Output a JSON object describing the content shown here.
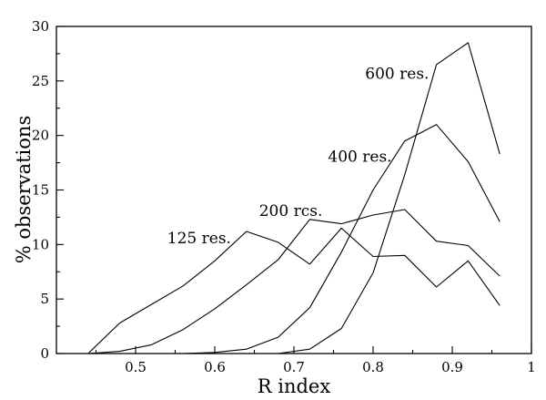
{
  "chart_data": {
    "type": "line",
    "title": "",
    "xlabel": "R index",
    "ylabel": "% observations",
    "xlim": [
      0.4,
      1.0
    ],
    "ylim": [
      0,
      30
    ],
    "x_ticks": [
      0.5,
      0.6,
      0.7,
      0.8,
      0.9,
      1.0
    ],
    "x_tick_labels": [
      "0.5",
      "0.6",
      "0.7",
      "0.8",
      "0.9",
      "1"
    ],
    "y_ticks": [
      0,
      5,
      10,
      15,
      20,
      25,
      30
    ],
    "y_tick_labels": [
      "0",
      "5",
      "10",
      "15",
      "20",
      "25",
      "30"
    ],
    "grid": false,
    "legend": "none",
    "series": [
      {
        "name": "125 res.",
        "x": [
          0.44,
          0.48,
          0.52,
          0.56,
          0.6,
          0.64,
          0.68,
          0.72,
          0.76,
          0.8,
          0.84,
          0.88,
          0.92,
          0.96
        ],
        "y": [
          0.0,
          2.8,
          4.5,
          6.2,
          8.5,
          11.2,
          10.2,
          8.2,
          11.5,
          8.9,
          9.0,
          6.1,
          8.5,
          4.4
        ]
      },
      {
        "name": "200 res.",
        "x": [
          0.44,
          0.48,
          0.52,
          0.56,
          0.6,
          0.64,
          0.68,
          0.72,
          0.76,
          0.8,
          0.84,
          0.88,
          0.92,
          0.96
        ],
        "y": [
          0.0,
          0.2,
          0.8,
          2.2,
          4.1,
          6.3,
          8.6,
          12.3,
          11.9,
          12.7,
          13.2,
          10.3,
          9.9,
          7.1
        ]
      },
      {
        "name": "400 res.",
        "x": [
          0.44,
          0.48,
          0.52,
          0.56,
          0.6,
          0.64,
          0.68,
          0.72,
          0.76,
          0.8,
          0.84,
          0.88,
          0.92,
          0.96
        ],
        "y": [
          0.0,
          0.0,
          0.0,
          0.0,
          0.1,
          0.4,
          1.5,
          4.2,
          9.3,
          15.0,
          19.5,
          21.0,
          17.6,
          12.1
        ]
      },
      {
        "name": "600 res.",
        "x": [
          0.44,
          0.48,
          0.52,
          0.56,
          0.6,
          0.64,
          0.68,
          0.72,
          0.76,
          0.8,
          0.84,
          0.88,
          0.92,
          0.96
        ],
        "y": [
          0.0,
          0.0,
          0.0,
          0.0,
          0.0,
          0.0,
          0.0,
          0.4,
          2.3,
          7.4,
          16.4,
          26.5,
          28.5,
          18.3
        ]
      }
    ],
    "annotations": [
      {
        "text": "125 res.",
        "series": "125 res.",
        "x": 0.54,
        "y": 10.1
      },
      {
        "text": "200 rcs.",
        "series": "200 res.",
        "x": 0.656,
        "y": 12.6
      },
      {
        "text": "400 res.",
        "series": "400 res.",
        "x": 0.743,
        "y": 17.6
      },
      {
        "text": "600 res.",
        "series": "600 res.",
        "x": 0.79,
        "y": 25.2
      }
    ]
  }
}
